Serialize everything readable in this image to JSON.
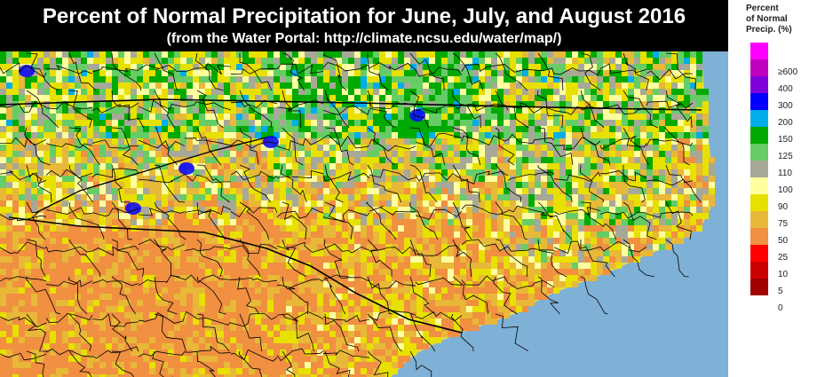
{
  "header": {
    "title": "Percent of Normal Precipitation for June, July, and August 2016",
    "subtitle": "(from the Water Portal: http://climate.ncsu.edu/water/map/)"
  },
  "legend": {
    "title_lines": [
      "Percent",
      "of Normal",
      "Precip. (%)"
    ],
    "items": [
      {
        "label": "",
        "color": "#ff00ff"
      },
      {
        "label": "≥600",
        "color": "#bf00bf"
      },
      {
        "label": "400",
        "color": "#8000dd"
      },
      {
        "label": "300",
        "color": "#0000ff"
      },
      {
        "label": "200",
        "color": "#00aeea"
      },
      {
        "label": "150",
        "color": "#00aa00"
      },
      {
        "label": "125",
        "color": "#66cc66"
      },
      {
        "label": "110",
        "color": "#a8a898"
      },
      {
        "label": "100",
        "color": "#ffffa0"
      },
      {
        "label": "90",
        "color": "#e8e000"
      },
      {
        "label": "75",
        "color": "#e8b838"
      },
      {
        "label": "50",
        "color": "#f09040"
      },
      {
        "label": "25",
        "color": "#ff0000"
      },
      {
        "label": "10",
        "color": "#cc0000"
      },
      {
        "label": "5",
        "color": "#a00000"
      },
      {
        "label": "0",
        "color": ""
      }
    ]
  },
  "map": {
    "ocean_color": "#7fb0d6",
    "land_base_color": "#e6d84a",
    "region": "North Carolina and surrounding states",
    "county_line_color": "#000000"
  }
}
